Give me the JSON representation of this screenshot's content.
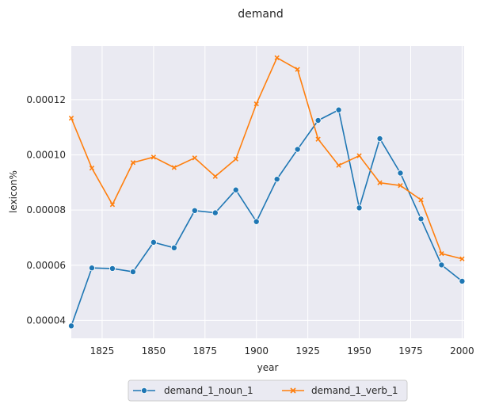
{
  "chart_data": {
    "type": "line",
    "title": "demand",
    "xlabel": "year",
    "ylabel": "lexicon%",
    "xlim": [
      1810,
      2001
    ],
    "ylim": [
      3.35e-05,
      0.0001395
    ],
    "xticks": [
      1825,
      1850,
      1875,
      1900,
      1925,
      1950,
      1975,
      2000
    ],
    "yticks": [
      4e-05,
      6e-05,
      8e-05,
      0.0001,
      0.00012
    ],
    "ytick_labels": [
      "0.00004",
      "0.00006",
      "0.00008",
      "0.00010",
      "0.00012"
    ],
    "grid": true,
    "legend_position": "bottom-center",
    "x": [
      1810,
      1820,
      1830,
      1840,
      1850,
      1860,
      1870,
      1880,
      1890,
      1900,
      1910,
      1920,
      1930,
      1940,
      1950,
      1960,
      1970,
      1980,
      1990,
      2000
    ],
    "series": [
      {
        "name": "demand_1_noun_1",
        "color": "#1f77b4",
        "marker": "circle",
        "values": [
          3.8e-05,
          5.9e-05,
          5.88e-05,
          5.76e-05,
          6.83e-05,
          6.63e-05,
          7.98e-05,
          7.9e-05,
          8.73e-05,
          7.58e-05,
          9.12e-05,
          0.000102,
          0.0001125,
          0.0001163,
          8.08e-05,
          0.0001059,
          9.34e-05,
          7.68e-05,
          6.01e-05,
          5.42e-05
        ]
      },
      {
        "name": "demand_1_verb_1",
        "color": "#ff7f0e",
        "marker": "x",
        "values": [
          0.0001133,
          9.52e-05,
          8.2e-05,
          9.72e-05,
          9.92e-05,
          9.54e-05,
          9.89e-05,
          9.22e-05,
          9.85e-05,
          0.0001185,
          0.0001352,
          0.000131,
          0.0001057,
          9.62e-05,
          9.97e-05,
          8.99e-05,
          8.89e-05,
          8.37e-05,
          6.42e-05,
          6.23e-05
        ]
      }
    ]
  }
}
